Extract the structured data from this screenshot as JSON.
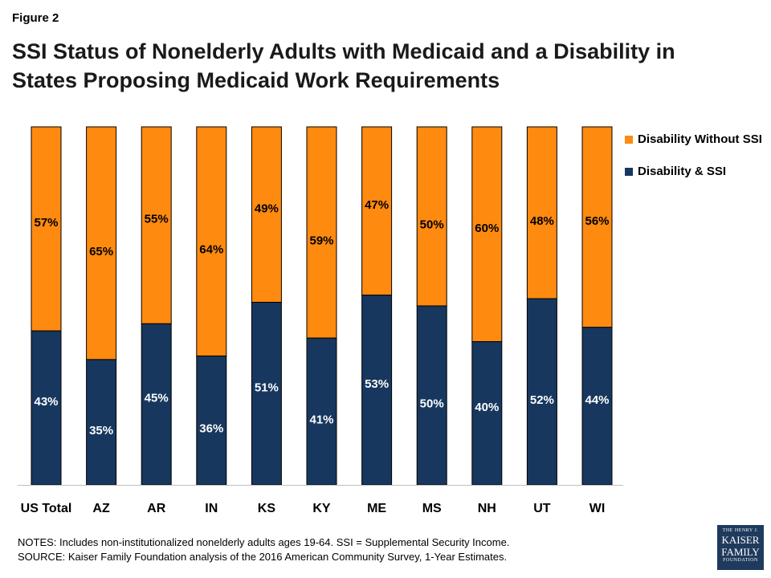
{
  "figure_label": "Figure 2",
  "notes": "NOTES: Includes non-institutionalized nonelderly adults ages 19-64. SSI = Supplemental Security Income.",
  "source": "SOURCE: Kaiser Family Foundation analysis of the 2016 American Community Survey, 1-Year Estimates.",
  "logo": {
    "line1": "THE HENRY J.",
    "line2": "KAISER",
    "line3": "FAMILY",
    "line4": "FOUNDATION"
  },
  "colors": {
    "ssi": "#17375e",
    "without_ssi": "#fe8a0f"
  },
  "chart_data": {
    "type": "bar",
    "stacked": true,
    "percent_stacked": true,
    "title": "SSI Status of Nonelderly Adults with Medicaid and a Disability in States Proposing Medicaid Work Requirements",
    "categories": [
      "US Total",
      "AZ",
      "AR",
      "IN",
      "KS",
      "KY",
      "ME",
      "MS",
      "NH",
      "UT",
      "WI"
    ],
    "series": [
      {
        "name": "Disability & SSI",
        "values": [
          43,
          35,
          45,
          36,
          51,
          41,
          53,
          50,
          40,
          52,
          44
        ],
        "color": "#17375e"
      },
      {
        "name": "Disability Without SSI",
        "values": [
          57,
          65,
          55,
          64,
          49,
          59,
          47,
          50,
          60,
          48,
          56
        ],
        "color": "#fe8a0f"
      }
    ],
    "value_suffix": "%",
    "legend": [
      "Disability Without SSI",
      "Disability & SSI"
    ],
    "legend_position": "right",
    "ylim": [
      0,
      100
    ],
    "grid": false,
    "xlabel": "",
    "ylabel": ""
  }
}
